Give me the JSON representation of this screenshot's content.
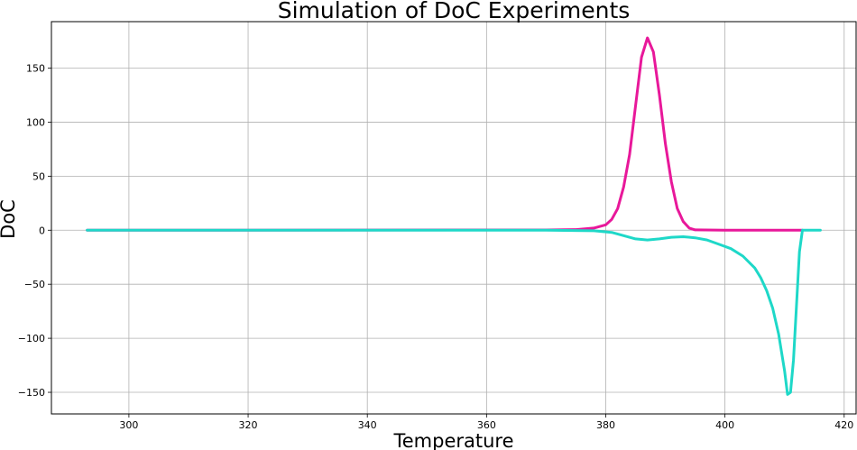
{
  "chart_data": {
    "type": "line",
    "title": "Simulation of DoC Experiments",
    "xlabel": "Temperature",
    "ylabel": "DoC",
    "xlim": [
      287,
      422
    ],
    "ylim": [
      -170,
      193
    ],
    "xticks": [
      300,
      320,
      340,
      360,
      380,
      400,
      420
    ],
    "yticks": [
      150,
      100,
      50,
      0,
      -50,
      -100,
      -150
    ],
    "xtick_labels": [
      "300",
      "320",
      "340",
      "360",
      "380",
      "400",
      "420"
    ],
    "ytick_labels": [
      "150",
      "100",
      "50",
      "0",
      "−50",
      "−100",
      "−150"
    ],
    "grid": true,
    "legend": "none",
    "series": [
      {
        "color": "#e8189a",
        "points": [
          [
            293,
            0
          ],
          [
            370,
            0.2
          ],
          [
            375,
            0.6
          ],
          [
            378,
            2
          ],
          [
            380,
            5
          ],
          [
            381,
            10
          ],
          [
            382,
            20
          ],
          [
            383,
            40
          ],
          [
            384,
            70
          ],
          [
            385,
            115
          ],
          [
            386,
            160
          ],
          [
            387,
            178
          ],
          [
            388,
            165
          ],
          [
            389,
            125
          ],
          [
            390,
            80
          ],
          [
            391,
            45
          ],
          [
            392,
            20
          ],
          [
            393,
            8
          ],
          [
            394,
            2
          ],
          [
            395,
            0.3
          ],
          [
            400,
            0
          ],
          [
            413,
            0
          ]
        ]
      },
      {
        "color": "#1ed8c8",
        "points": [
          [
            293,
            0
          ],
          [
            370,
            0
          ],
          [
            378,
            -0.5
          ],
          [
            381,
            -2
          ],
          [
            383,
            -5
          ],
          [
            385,
            -8
          ],
          [
            387,
            -9
          ],
          [
            389,
            -8
          ],
          [
            391,
            -6.5
          ],
          [
            393,
            -6
          ],
          [
            395,
            -7
          ],
          [
            397,
            -9
          ],
          [
            399,
            -13
          ],
          [
            401,
            -17
          ],
          [
            403,
            -24
          ],
          [
            405,
            -35
          ],
          [
            406,
            -44
          ],
          [
            407,
            -56
          ],
          [
            408,
            -72
          ],
          [
            409,
            -96
          ],
          [
            410,
            -130
          ],
          [
            410.5,
            -152
          ],
          [
            411,
            -150
          ],
          [
            411.5,
            -120
          ],
          [
            412,
            -70
          ],
          [
            412.5,
            -20
          ],
          [
            413,
            0
          ],
          [
            413.5,
            0
          ],
          [
            416,
            0
          ]
        ]
      }
    ]
  }
}
